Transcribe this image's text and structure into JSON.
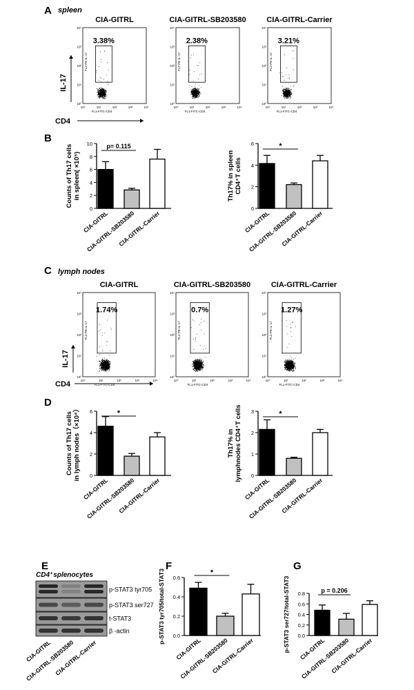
{
  "labels": {
    "A": "A",
    "B": "B",
    "C": "C",
    "D": "D",
    "E": "E",
    "F": "F",
    "G": "G"
  },
  "panel_a": {
    "tissue": "spleen",
    "groups": [
      "CIA-GITRL",
      "CIA-GITRL-SB203580",
      "CIA-GITRL-Carrier"
    ],
    "percents": [
      "3.38%",
      "2.38%",
      "3.21%"
    ],
    "ylabel": "IL-17",
    "xlabel": "CD4",
    "inner_xlabel": "FL1-FITC-CD4",
    "inner_ylabel": "FL2-PE-IL-17",
    "ticks": [
      "10⁰",
      "10¹",
      "10²",
      "10³",
      "10⁴"
    ]
  },
  "panel_c": {
    "tissue": "lymph nodes",
    "groups": [
      "CIA-GITRL",
      "CIA-GITRL-SB203580",
      "CIA-GITRL-Carrier"
    ],
    "percents": [
      "1.74%",
      "0.7%",
      "1.27%"
    ],
    "ylabel": "IL-17",
    "xlabel": "CD4",
    "inner_xlabel": "FL1-FITC-CD4",
    "inner_ylabel": "FL2-PE-IL-17",
    "ticks": [
      "10⁰",
      "10¹",
      "10²",
      "10³",
      "10⁴"
    ]
  },
  "panel_e": {
    "title": "CD4⁺splenocytes",
    "bands": [
      "p-STAT3 tyr705",
      "p-STAT3 ser727",
      "t-STAT3",
      "β -actin"
    ],
    "lanes": [
      "CIA-GITRL",
      "CIA-GITRL-SB203580",
      "CIA-GITRL-Carrier"
    ]
  },
  "colors": {
    "group1": "#000000",
    "group2": "#c0c0c0",
    "group3": "#ffffff"
  },
  "chart_data": [
    {
      "id": "B1",
      "type": "bar",
      "categories": [
        "CIA-GITRL",
        "CIA-GITRL-SB203580",
        "CIA-GITRL-Carrier"
      ],
      "values": [
        6.0,
        2.85,
        7.6
      ],
      "errors": [
        1.2,
        0.25,
        1.5
      ],
      "ylabel_lines": [
        "Counts of Th17 cells",
        "in spleen( ×10⁵)"
      ],
      "ylim": [
        0,
        10
      ],
      "yticks": [
        "0",
        "2",
        "4",
        "6",
        "8",
        "10"
      ],
      "annotation": "p= 0.115"
    },
    {
      "id": "B2",
      "type": "bar",
      "categories": [
        "CIA-GITRL",
        "CIA-GITRL-SB203580",
        "CIA-GITRL-Carrier"
      ],
      "values": [
        4.15,
        2.2,
        4.4
      ],
      "errors": [
        0.75,
        0.15,
        0.5
      ],
      "ylabel_lines": [
        "Th17% in spleen",
        "CD4⁺T cells"
      ],
      "ylim": [
        0,
        6
      ],
      "yticks": [
        "0",
        "2",
        "4",
        "6"
      ],
      "annotation": "*"
    },
    {
      "id": "D1",
      "type": "bar",
      "categories": [
        "CIA-GITRL",
        "CIA-GITRL-SB203580",
        "CIA-GITRL-Carrier"
      ],
      "values": [
        4.6,
        1.8,
        3.6
      ],
      "errors": [
        0.9,
        0.25,
        0.4
      ],
      "ylabel_lines": [
        "Counts of Th17 cells",
        "in lymph nodes（×10⁴）"
      ],
      "ylim": [
        0,
        6
      ],
      "yticks": [
        "0",
        "2",
        "4",
        "6"
      ],
      "annotation": "*"
    },
    {
      "id": "D2",
      "type": "bar",
      "categories": [
        "CIA-GITRL",
        "CIA-GITRL-SB203580",
        "CIA-GITRL-Carrier"
      ],
      "values": [
        2.15,
        0.8,
        2.0
      ],
      "errors": [
        0.45,
        0.05,
        0.15
      ],
      "ylabel_lines": [
        "Th17% in",
        "lymphnodes CD4⁺T cells"
      ],
      "ylim": [
        0,
        3
      ],
      "yticks": [
        "0",
        "1",
        "2",
        "3"
      ],
      "annotation": "*"
    },
    {
      "id": "F",
      "type": "bar",
      "categories": [
        "CIA-GITRL",
        "CIA-GITRL-SB203580",
        "CIA-GITRL-Carrier"
      ],
      "values": [
        0.49,
        0.2,
        0.43
      ],
      "errors": [
        0.06,
        0.03,
        0.1
      ],
      "ylabel_lines": [
        "p-STAT3 tyr705/total-STAT3"
      ],
      "ylim": [
        0,
        0.6
      ],
      "yticks": [
        "0.0",
        "0.2",
        "0.4",
        "0.6"
      ],
      "annotation": "*"
    },
    {
      "id": "G",
      "type": "bar",
      "categories": [
        "CIA-GITRL",
        "CIA-GITRL-SB203580",
        "CIA-GITRL-Carrier"
      ],
      "values": [
        0.48,
        0.31,
        0.59
      ],
      "errors": [
        0.1,
        0.11,
        0.07
      ],
      "ylabel_lines": [
        "p-STAT3 ser727/total-STAT3"
      ],
      "ylim": [
        0,
        0.8
      ],
      "yticks": [
        "0.0",
        "0.2",
        "0.4",
        "0.6",
        "0.8"
      ],
      "annotation": "p = 0.206"
    }
  ]
}
